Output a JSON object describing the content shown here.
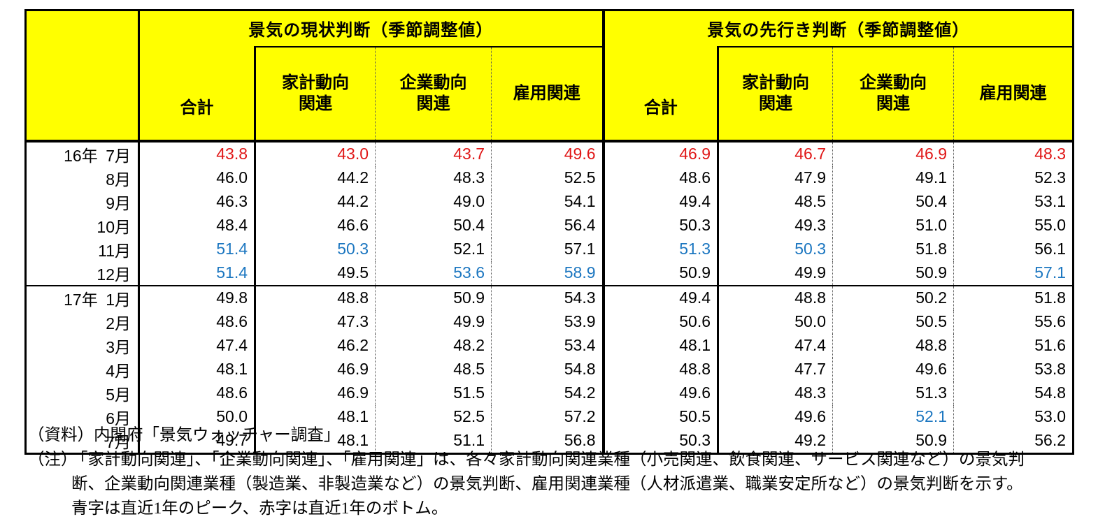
{
  "colors": {
    "header_yellow": "#ffff00",
    "bottom_red": "#e01616",
    "peak_blue": "#1b76c0",
    "border_black": "#000000"
  },
  "table": {
    "current_group_title": "景気の現状判断（季節調整値）",
    "outlook_group_title": "景気の先行き判断（季節調整値）",
    "sub_headers": [
      "合計",
      "家計動向\n関連",
      "企業動向\n関連",
      "雇用関連"
    ],
    "rows": [
      {
        "year": "16年",
        "month": "7月",
        "current": [
          [
            "43.8",
            "r"
          ],
          [
            "43.0",
            "r"
          ],
          [
            "43.7",
            "r"
          ],
          [
            "49.6",
            "r"
          ]
        ],
        "outlook": [
          [
            "46.9",
            "r"
          ],
          [
            "46.7",
            "r"
          ],
          [
            "46.9",
            "r"
          ],
          [
            "48.3",
            "r"
          ]
        ]
      },
      {
        "year": "",
        "month": "8月",
        "current": [
          [
            "46.0"
          ],
          [
            "44.2"
          ],
          [
            "48.3"
          ],
          [
            "52.5"
          ]
        ],
        "outlook": [
          [
            "48.6"
          ],
          [
            "47.9"
          ],
          [
            "49.1"
          ],
          [
            "52.3"
          ]
        ]
      },
      {
        "year": "",
        "month": "9月",
        "current": [
          [
            "46.3"
          ],
          [
            "44.2"
          ],
          [
            "49.0"
          ],
          [
            "54.1"
          ]
        ],
        "outlook": [
          [
            "49.4"
          ],
          [
            "48.5"
          ],
          [
            "50.4"
          ],
          [
            "53.1"
          ]
        ]
      },
      {
        "year": "",
        "month": "10月",
        "current": [
          [
            "48.4"
          ],
          [
            "46.6"
          ],
          [
            "50.4"
          ],
          [
            "56.4"
          ]
        ],
        "outlook": [
          [
            "50.3"
          ],
          [
            "49.3"
          ],
          [
            "51.0"
          ],
          [
            "55.0"
          ]
        ]
      },
      {
        "year": "",
        "month": "11月",
        "current": [
          [
            "51.4",
            "b"
          ],
          [
            "50.3",
            "b"
          ],
          [
            "52.1"
          ],
          [
            "57.1"
          ]
        ],
        "outlook": [
          [
            "51.3",
            "b"
          ],
          [
            "50.3",
            "b"
          ],
          [
            "51.8"
          ],
          [
            "56.1"
          ]
        ]
      },
      {
        "year": "",
        "month": "12月",
        "current": [
          [
            "51.4",
            "b"
          ],
          [
            "49.5"
          ],
          [
            "53.6",
            "b"
          ],
          [
            "58.9",
            "b"
          ]
        ],
        "outlook": [
          [
            "50.9"
          ],
          [
            "49.9"
          ],
          [
            "50.9"
          ],
          [
            "57.1",
            "b"
          ]
        ]
      },
      {
        "year": "17年",
        "month": "1月",
        "current": [
          [
            "49.8"
          ],
          [
            "48.8"
          ],
          [
            "50.9"
          ],
          [
            "54.3"
          ]
        ],
        "outlook": [
          [
            "49.4"
          ],
          [
            "48.8"
          ],
          [
            "50.2"
          ],
          [
            "51.8"
          ]
        ]
      },
      {
        "year": "",
        "month": "2月",
        "current": [
          [
            "48.6"
          ],
          [
            "47.3"
          ],
          [
            "49.9"
          ],
          [
            "53.9"
          ]
        ],
        "outlook": [
          [
            "50.6"
          ],
          [
            "50.0"
          ],
          [
            "50.5"
          ],
          [
            "55.6"
          ]
        ]
      },
      {
        "year": "",
        "month": "3月",
        "current": [
          [
            "47.4"
          ],
          [
            "46.2"
          ],
          [
            "48.2"
          ],
          [
            "53.4"
          ]
        ],
        "outlook": [
          [
            "48.1"
          ],
          [
            "47.4"
          ],
          [
            "48.8"
          ],
          [
            "51.6"
          ]
        ]
      },
      {
        "year": "",
        "month": "4月",
        "current": [
          [
            "48.1"
          ],
          [
            "46.9"
          ],
          [
            "48.5"
          ],
          [
            "54.8"
          ]
        ],
        "outlook": [
          [
            "48.8"
          ],
          [
            "47.7"
          ],
          [
            "49.6"
          ],
          [
            "53.8"
          ]
        ]
      },
      {
        "year": "",
        "month": "5月",
        "current": [
          [
            "48.6"
          ],
          [
            "46.9"
          ],
          [
            "51.5"
          ],
          [
            "54.2"
          ]
        ],
        "outlook": [
          [
            "49.6"
          ],
          [
            "48.3"
          ],
          [
            "51.3"
          ],
          [
            "54.8"
          ]
        ]
      },
      {
        "year": "",
        "month": "6月",
        "current": [
          [
            "50.0"
          ],
          [
            "48.1"
          ],
          [
            "52.5"
          ],
          [
            "57.2"
          ]
        ],
        "outlook": [
          [
            "50.5"
          ],
          [
            "49.6"
          ],
          [
            "52.1",
            "b"
          ],
          [
            "53.0"
          ]
        ]
      },
      {
        "year": "",
        "month": "7月",
        "current": [
          [
            "49.7"
          ],
          [
            "48.1"
          ],
          [
            "51.1"
          ],
          [
            "56.8"
          ]
        ],
        "outlook": [
          [
            "50.3"
          ],
          [
            "49.2"
          ],
          [
            "50.9"
          ],
          [
            "56.2"
          ]
        ]
      }
    ]
  },
  "notes": {
    "source": "（資料）内閣府「景気ウォッチャー調査」",
    "note_label": "（注）",
    "note_lines": [
      "「家計動向関連」、「企業動向関連」、「雇用関連」は、各々家計動向関連業種（小売関連、飲食関連、サービス関連など）の景気判",
      "断、企業動向関連業種（製造業、非製造業など）の景気判断、雇用関連業種（人材派遣業、職業安定所など）の景気判断を示す。",
      "青字は直近1年のピーク、赤字は直近1年のボトム。"
    ]
  }
}
